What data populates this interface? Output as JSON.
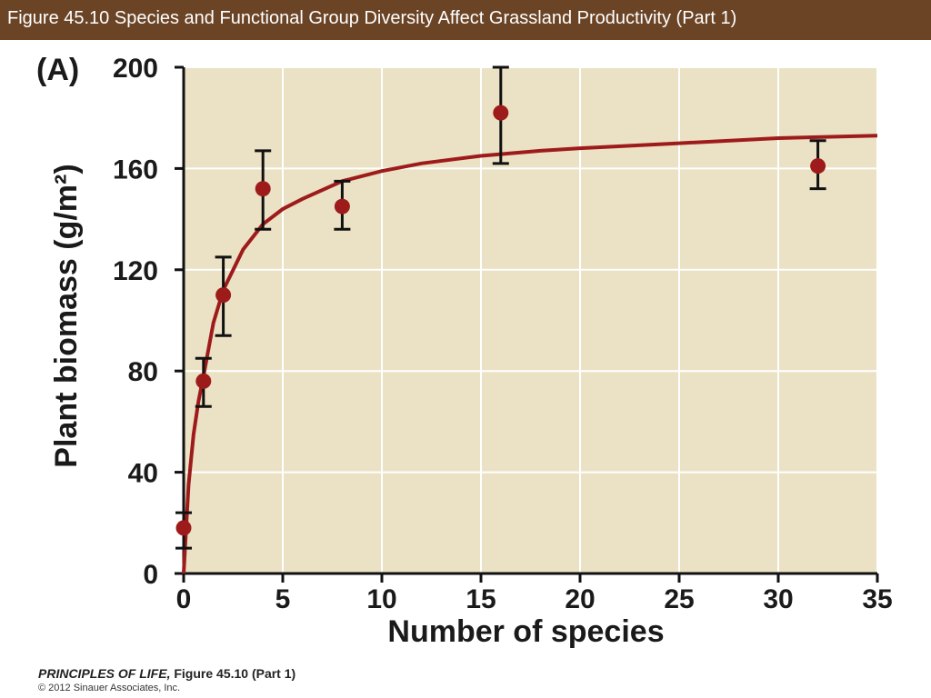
{
  "header": {
    "title": "Figure 45.10  Species and Functional Group Diversity Affect Grassland Productivity (Part 1)"
  },
  "panel_label": "(A)",
  "footer": {
    "book": "PRINCIPLES OF LIFE,",
    "figure": " Figure 45.10 (Part 1)",
    "copyright": "© 2012 Sinauer Associates, Inc."
  },
  "colors": {
    "title_bar": "#6b4426",
    "plot_background": "#ebe1c4",
    "grid": "#ffffff",
    "series": "#9e1b1b",
    "error_bars": "#111111",
    "axis": "#111111"
  },
  "chart_data": {
    "type": "scatter",
    "title": "",
    "xlabel": "Number of species",
    "ylabel": "Plant biomass (g/m²)",
    "xlim": [
      0,
      35
    ],
    "ylim": [
      0,
      200
    ],
    "x_ticks": [
      0,
      5,
      10,
      15,
      20,
      25,
      30,
      35
    ],
    "y_ticks": [
      0,
      40,
      80,
      120,
      160,
      200
    ],
    "grid": true,
    "points": [
      {
        "x": 0,
        "y": 18,
        "err_low": 10,
        "err_high": 24
      },
      {
        "x": 1,
        "y": 76,
        "err_low": 66,
        "err_high": 85
      },
      {
        "x": 2,
        "y": 110,
        "err_low": 94,
        "err_high": 125
      },
      {
        "x": 4,
        "y": 152,
        "err_low": 136,
        "err_high": 167
      },
      {
        "x": 8,
        "y": 145,
        "err_low": 136,
        "err_high": 155
      },
      {
        "x": 16,
        "y": 182,
        "err_low": 162,
        "err_high": 200
      },
      {
        "x": 32,
        "y": 161,
        "err_low": 152,
        "err_high": 171
      }
    ],
    "fit_curve": {
      "form": "saturating",
      "x": [
        0,
        0.25,
        0.5,
        0.75,
        1,
        1.5,
        2,
        3,
        4,
        5,
        6,
        8,
        10,
        12,
        15,
        18,
        20,
        25,
        30,
        35
      ],
      "y": [
        0,
        35,
        55,
        68,
        78,
        99,
        112,
        128,
        138,
        144,
        148,
        155,
        159,
        162,
        165,
        167,
        168,
        170,
        172,
        173
      ]
    }
  }
}
